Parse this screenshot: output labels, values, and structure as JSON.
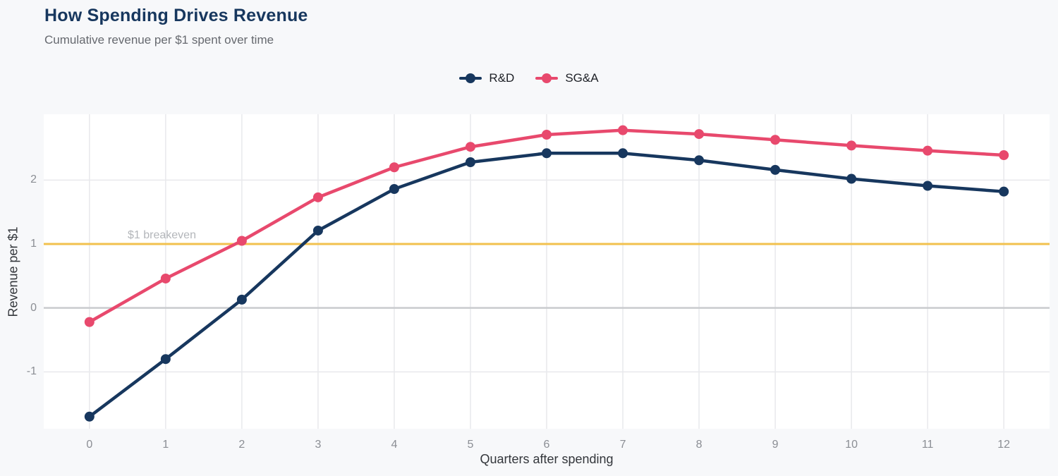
{
  "header": {
    "title": "How Spending Drives Revenue",
    "subtitle": "Cumulative revenue per $1 spent over time"
  },
  "legend": [
    {
      "label": "R&D",
      "color": "#17375e"
    },
    {
      "label": "SG&A",
      "color": "#e8496d"
    }
  ],
  "annotation": {
    "breakeven_label": "$1 breakeven",
    "breakeven_value": 1,
    "line_color": "#f2c14e",
    "label_color": "#b3b6ba"
  },
  "chart_data": {
    "type": "line",
    "title": "How Spending Drives Revenue",
    "subtitle": "Cumulative revenue per $1 spent over time",
    "xlabel": "Quarters after spending",
    "ylabel": "Revenue per $1",
    "x": [
      0,
      1,
      2,
      3,
      4,
      5,
      6,
      7,
      8,
      9,
      10,
      11,
      12
    ],
    "series": [
      {
        "name": "R&D",
        "color": "#17375e",
        "values": [
          -1.7,
          -0.8,
          0.13,
          1.21,
          1.86,
          2.28,
          2.42,
          2.42,
          2.31,
          2.16,
          2.02,
          1.91,
          1.82
        ]
      },
      {
        "name": "SG&A",
        "color": "#e8496d",
        "values": [
          -0.22,
          0.46,
          1.05,
          1.73,
          2.2,
          2.52,
          2.71,
          2.78,
          2.72,
          2.63,
          2.54,
          2.46,
          2.39
        ]
      }
    ],
    "x_ticks": [
      0,
      1,
      2,
      3,
      4,
      5,
      6,
      7,
      8,
      9,
      10,
      11,
      12
    ],
    "y_ticks": [
      -1,
      0,
      1,
      2
    ],
    "xlim": [
      -0.6,
      12.6
    ],
    "ylim": [
      -1.89,
      3.03
    ],
    "grid": true,
    "legend_position": "top-center",
    "reference_line": {
      "value": 1,
      "label": "$1 breakeven"
    },
    "colors": {
      "page_bg": "#f7f8fa",
      "plot_bg": "#ffffff",
      "grid": "#e8e9ec",
      "zero_line": "#c9cbce",
      "title": "#17375e",
      "subtitle": "#66696f",
      "tick": "#8b8e94",
      "axis_title": "#33363b",
      "legend_text": "#1d2026",
      "breakeven": "#f2c14e",
      "breakeven_label": "#b3b6ba"
    }
  }
}
